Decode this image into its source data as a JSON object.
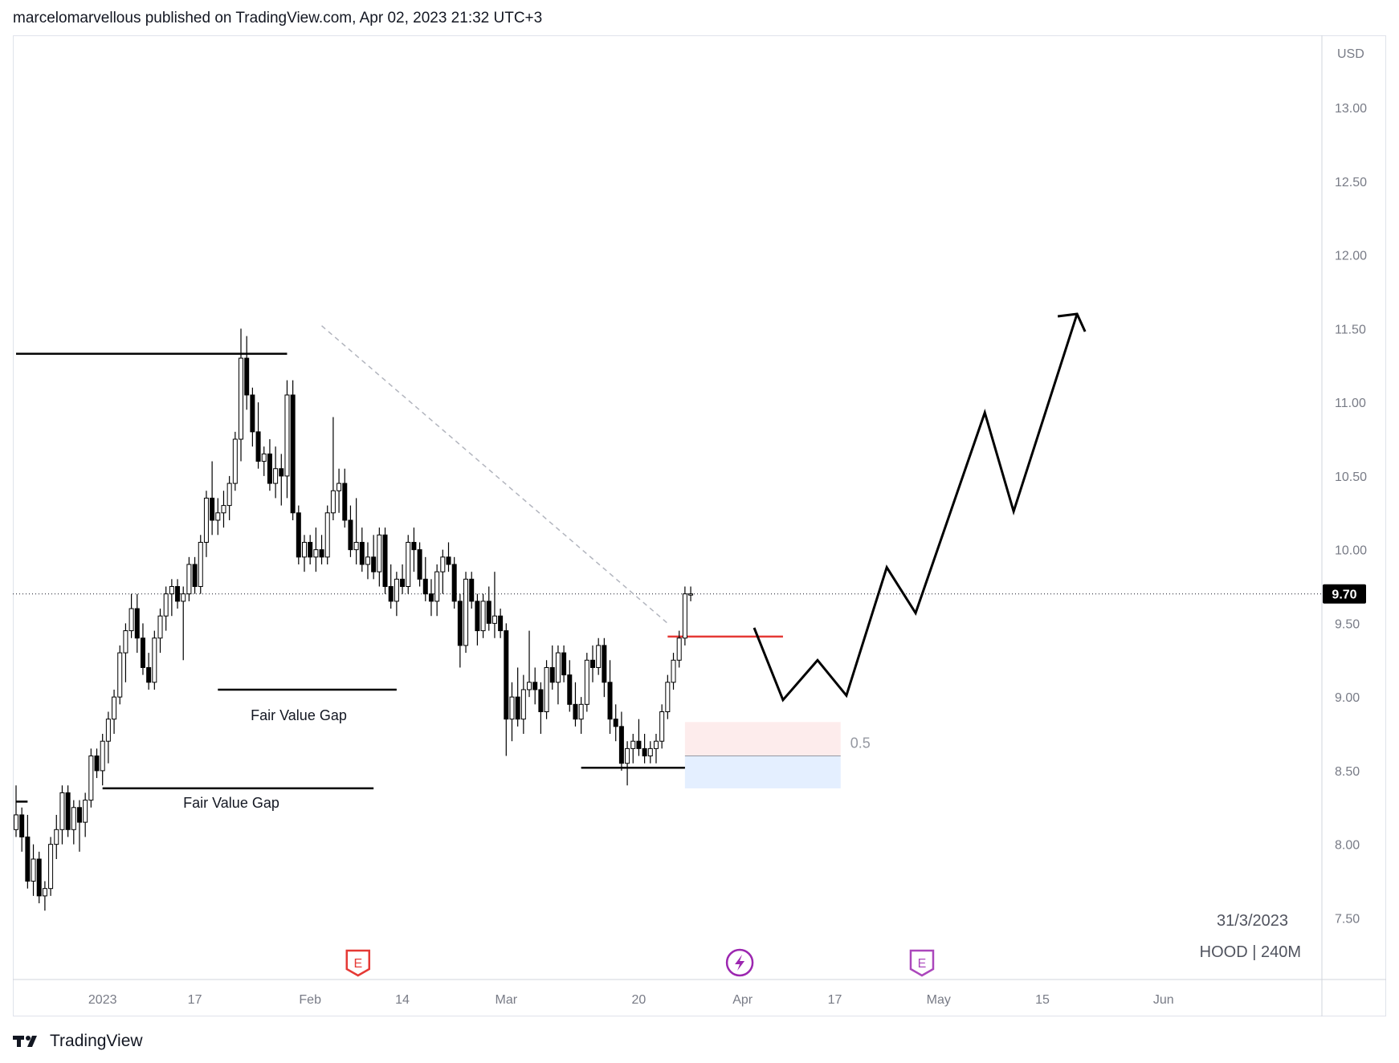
{
  "header": {
    "title": "marcelomarvellous published on TradingView.com, Apr 02, 2023 21:32 UTC+3"
  },
  "footer": {
    "brand": "TradingView",
    "logo_icon": "tradingview-logo-icon"
  },
  "chart_data": {
    "type": "candlestick",
    "currency": "USD",
    "symbol_label": "HOOD | 240M",
    "date_label": "31/3/2023",
    "last_price": "9.70",
    "y_ticks": [
      "13.00",
      "12.50",
      "12.00",
      "11.50",
      "11.00",
      "10.50",
      "10.00",
      "9.50",
      "9.00",
      "8.50",
      "8.00",
      "7.50"
    ],
    "ylim": [
      7.0,
      13.4
    ],
    "x_ticks": [
      "2023",
      "17",
      "Feb",
      "14",
      "Mar",
      "20",
      "Apr",
      "17",
      "May",
      "15",
      "Jun"
    ],
    "annotations": {
      "fvg_labels": [
        "Fair Value Gap",
        "Fair Value Gap"
      ],
      "fib_level": "0.5",
      "event_markers": [
        {
          "label": "E",
          "icon": "earnings-icon",
          "color": "#e53935"
        },
        {
          "label": "",
          "icon": "lightning-icon",
          "color": "#9c27b0"
        },
        {
          "label": "E",
          "icon": "earnings-icon",
          "color": "#ab47bc"
        }
      ]
    },
    "colors": {
      "up": "#ffffff",
      "down": "#000000",
      "projection": "#000000",
      "resistance": "#e53935"
    },
    "candles": [
      [
        8.1,
        8.4,
        8.05,
        8.2
      ],
      [
        8.2,
        8.25,
        7.95,
        8.05
      ],
      [
        8.05,
        8.2,
        7.7,
        7.75
      ],
      [
        7.75,
        8.0,
        7.65,
        7.9
      ],
      [
        7.9,
        7.95,
        7.6,
        7.65
      ],
      [
        7.65,
        7.75,
        7.55,
        7.7
      ],
      [
        7.7,
        8.05,
        7.65,
        8.0
      ],
      [
        8.0,
        8.2,
        7.9,
        8.1
      ],
      [
        8.1,
        8.4,
        8.0,
        8.35
      ],
      [
        8.35,
        8.4,
        8.05,
        8.1
      ],
      [
        8.1,
        8.3,
        8.0,
        8.25
      ],
      [
        8.25,
        8.3,
        7.95,
        8.15
      ],
      [
        8.15,
        8.35,
        8.05,
        8.3
      ],
      [
        8.3,
        8.65,
        8.25,
        8.6
      ],
      [
        8.6,
        8.65,
        8.45,
        8.5
      ],
      [
        8.5,
        8.75,
        8.4,
        8.7
      ],
      [
        8.7,
        8.9,
        8.55,
        8.85
      ],
      [
        8.85,
        9.05,
        8.75,
        9.0
      ],
      [
        9.0,
        9.35,
        8.95,
        9.3
      ],
      [
        9.3,
        9.5,
        9.1,
        9.45
      ],
      [
        9.45,
        9.7,
        9.4,
        9.6
      ],
      [
        9.6,
        9.7,
        9.3,
        9.4
      ],
      [
        9.4,
        9.5,
        9.15,
        9.2
      ],
      [
        9.2,
        9.3,
        9.05,
        9.1
      ],
      [
        9.1,
        9.45,
        9.05,
        9.4
      ],
      [
        9.4,
        9.6,
        9.3,
        9.55
      ],
      [
        9.55,
        9.75,
        9.45,
        9.7
      ],
      [
        9.7,
        9.8,
        9.55,
        9.75
      ],
      [
        9.75,
        9.8,
        9.6,
        9.65
      ],
      [
        9.65,
        9.75,
        9.25,
        9.7
      ],
      [
        9.7,
        9.95,
        9.65,
        9.9
      ],
      [
        9.9,
        9.95,
        9.7,
        9.75
      ],
      [
        9.75,
        10.1,
        9.7,
        10.05
      ],
      [
        10.05,
        10.4,
        9.95,
        10.35
      ],
      [
        10.35,
        10.6,
        10.1,
        10.2
      ],
      [
        10.2,
        10.35,
        10.1,
        10.25
      ],
      [
        10.25,
        10.4,
        10.15,
        10.3
      ],
      [
        10.3,
        10.5,
        10.2,
        10.45
      ],
      [
        10.45,
        10.8,
        10.4,
        10.75
      ],
      [
        10.75,
        11.5,
        10.6,
        11.3
      ],
      [
        11.3,
        11.45,
        10.95,
        11.05
      ],
      [
        11.05,
        11.1,
        10.7,
        10.8
      ],
      [
        10.8,
        11.0,
        10.55,
        10.6
      ],
      [
        10.6,
        10.7,
        10.5,
        10.65
      ],
      [
        10.65,
        10.75,
        10.4,
        10.45
      ],
      [
        10.45,
        10.7,
        10.35,
        10.55
      ],
      [
        10.55,
        10.65,
        10.3,
        10.5
      ],
      [
        10.5,
        11.15,
        10.35,
        11.05
      ],
      [
        11.05,
        11.15,
        10.2,
        10.25
      ],
      [
        10.25,
        10.3,
        9.9,
        9.95
      ],
      [
        9.95,
        10.1,
        9.85,
        10.05
      ],
      [
        10.05,
        10.1,
        9.9,
        9.95
      ],
      [
        9.95,
        10.15,
        9.85,
        10.0
      ],
      [
        10.0,
        10.1,
        9.9,
        9.95
      ],
      [
        9.95,
        10.3,
        9.9,
        10.25
      ],
      [
        10.25,
        10.9,
        10.2,
        10.4
      ],
      [
        10.4,
        10.55,
        10.25,
        10.45
      ],
      [
        10.45,
        10.55,
        10.15,
        10.2
      ],
      [
        10.2,
        10.3,
        9.95,
        10.0
      ],
      [
        10.0,
        10.35,
        9.9,
        10.05
      ],
      [
        10.05,
        10.15,
        9.85,
        9.9
      ],
      [
        9.9,
        10.05,
        9.8,
        9.95
      ],
      [
        9.95,
        10.1,
        9.8,
        9.85
      ],
      [
        9.85,
        10.15,
        9.75,
        10.1
      ],
      [
        10.1,
        10.15,
        9.7,
        9.75
      ],
      [
        9.75,
        9.9,
        9.6,
        9.65
      ],
      [
        9.65,
        9.85,
        9.55,
        9.8
      ],
      [
        9.8,
        9.9,
        9.7,
        9.75
      ],
      [
        9.75,
        10.1,
        9.7,
        10.05
      ],
      [
        10.05,
        10.15,
        9.85,
        10.0
      ],
      [
        10.0,
        10.05,
        9.75,
        9.8
      ],
      [
        9.8,
        9.95,
        9.65,
        9.7
      ],
      [
        9.7,
        9.8,
        9.55,
        9.65
      ],
      [
        9.65,
        9.9,
        9.55,
        9.85
      ],
      [
        9.85,
        10.0,
        9.7,
        9.95
      ],
      [
        9.95,
        10.05,
        9.85,
        9.9
      ],
      [
        9.9,
        9.95,
        9.6,
        9.65
      ],
      [
        9.65,
        9.7,
        9.2,
        9.35
      ],
      [
        9.35,
        9.85,
        9.3,
        9.8
      ],
      [
        9.8,
        9.85,
        9.6,
        9.65
      ],
      [
        9.65,
        9.7,
        9.35,
        9.45
      ],
      [
        9.45,
        9.7,
        9.4,
        9.65
      ],
      [
        9.65,
        9.75,
        9.45,
        9.5
      ],
      [
        9.5,
        9.85,
        9.4,
        9.55
      ],
      [
        9.55,
        9.6,
        9.4,
        9.45
      ],
      [
        9.45,
        9.5,
        8.6,
        8.85
      ],
      [
        8.85,
        9.1,
        8.7,
        9.0
      ],
      [
        9.0,
        9.2,
        8.8,
        8.85
      ],
      [
        8.85,
        9.15,
        8.75,
        9.05
      ],
      [
        9.05,
        9.45,
        9.0,
        9.1
      ],
      [
        9.1,
        9.2,
        8.95,
        9.05
      ],
      [
        9.05,
        9.1,
        8.75,
        8.9
      ],
      [
        8.9,
        9.25,
        8.85,
        9.2
      ],
      [
        9.2,
        9.35,
        9.05,
        9.1
      ],
      [
        9.1,
        9.35,
        8.95,
        9.3
      ],
      [
        9.3,
        9.35,
        9.1,
        9.15
      ],
      [
        9.15,
        9.25,
        8.9,
        8.95
      ],
      [
        8.95,
        9.1,
        8.8,
        8.85
      ],
      [
        8.85,
        9.0,
        8.75,
        8.95
      ],
      [
        8.95,
        9.3,
        8.9,
        9.25
      ],
      [
        9.25,
        9.35,
        9.1,
        9.2
      ],
      [
        9.2,
        9.4,
        9.15,
        9.35
      ],
      [
        9.35,
        9.4,
        9.0,
        9.1
      ],
      [
        9.1,
        9.25,
        8.75,
        8.85
      ],
      [
        8.85,
        8.95,
        8.7,
        8.8
      ],
      [
        8.8,
        8.9,
        8.5,
        8.55
      ],
      [
        8.55,
        8.7,
        8.4,
        8.65
      ],
      [
        8.65,
        8.75,
        8.55,
        8.7
      ],
      [
        8.7,
        8.85,
        8.6,
        8.65
      ],
      [
        8.65,
        8.75,
        8.55,
        8.6
      ],
      [
        8.6,
        8.7,
        8.55,
        8.65
      ],
      [
        8.65,
        8.75,
        8.55,
        8.7
      ],
      [
        8.7,
        8.95,
        8.65,
        8.9
      ],
      [
        8.9,
        9.15,
        8.85,
        9.1
      ],
      [
        9.1,
        9.3,
        9.05,
        9.25
      ],
      [
        9.25,
        9.45,
        9.2,
        9.4
      ],
      [
        9.4,
        9.75,
        9.35,
        9.7
      ],
      [
        9.7,
        9.75,
        9.65,
        9.7
      ]
    ],
    "levels": [
      {
        "name": "prior-high-line",
        "price": 11.33,
        "from_index": 0,
        "to_index": 47
      },
      {
        "name": "fvg-line-upper",
        "price": 9.05,
        "from_index": 35,
        "to_index": 66
      },
      {
        "name": "fvg-line-lower",
        "price": 8.38,
        "from_index": 15,
        "to_index": 62
      },
      {
        "name": "range-low-line",
        "price": 8.52,
        "from_index": 98,
        "to_index": 116
      },
      {
        "name": "resistance-line",
        "price": 9.41,
        "from_index": 113,
        "to_index": 133
      },
      {
        "name": "mini-level",
        "price": 8.29,
        "from_index": 0,
        "to_index": 2
      }
    ],
    "trendline": {
      "from": {
        "index": 53,
        "price": 11.52
      },
      "to": {
        "index": 113,
        "price": 9.5
      }
    },
    "fib_zone": {
      "from_index": 116,
      "to_index": 143,
      "top": 8.83,
      "mid": 8.6,
      "bottom": 8.38
    },
    "projection": [
      [
        128,
        9.47
      ],
      [
        133,
        8.98
      ],
      [
        139,
        9.25
      ],
      [
        144,
        9.01
      ],
      [
        151,
        9.88
      ],
      [
        156,
        9.57
      ],
      [
        168,
        10.93
      ],
      [
        173,
        10.26
      ],
      [
        184,
        11.6
      ]
    ]
  }
}
